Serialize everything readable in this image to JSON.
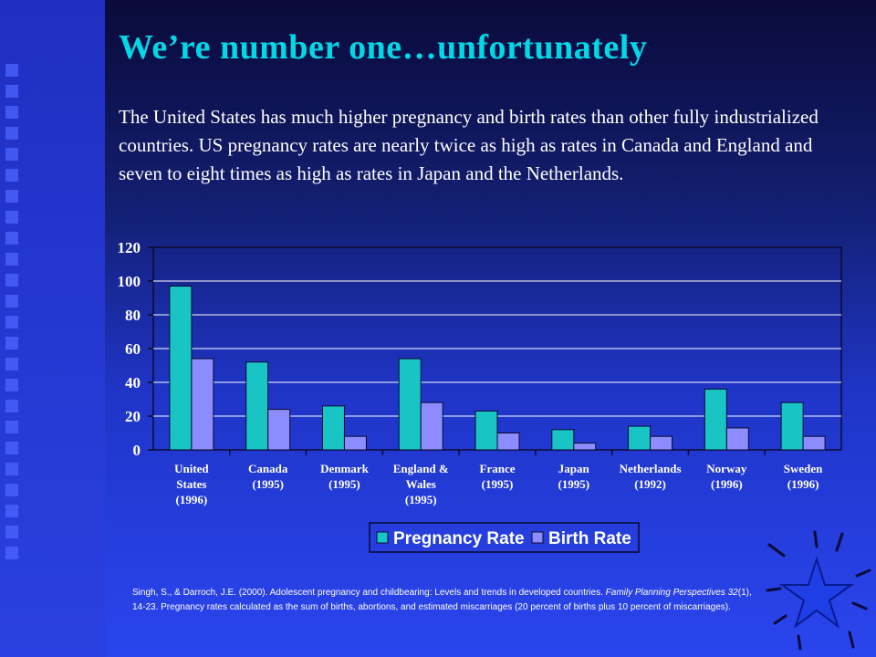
{
  "slide": {
    "title": "We’re number one…unfortunately",
    "intro": "The United States has much higher pregnancy and birth rates than other fully industrialized countries.  US pregnancy rates are nearly twice as high as rates in Canada and England and seven to eight times as high as rates in Japan and the Netherlands.",
    "citation": {
      "part1": "Singh, S., & Darroch, J.E. (2000). Adolescent pregnancy and childbearing: Levels and trends in developed countries. ",
      "journal": "Family Planning Perspectives 32",
      "part2": "(1), 14-23. Pregnancy rates calculated as the sum of births, abortions, and estimated miscarriages (20 percent of births plus 10 percent of miscarriages)."
    }
  },
  "colors": {
    "pregnancy": "#19c4c4",
    "birth": "#8c8cff",
    "title": "#00d8e8",
    "star": "#1f3fe6"
  },
  "chart_data": {
    "type": "bar",
    "title": "",
    "xlabel": "",
    "ylabel": "",
    "ylim": [
      0,
      120
    ],
    "yticks": [
      0,
      20,
      40,
      60,
      80,
      100,
      120
    ],
    "grid": true,
    "legend_position": "bottom",
    "categories": [
      [
        "United",
        "States",
        "(1996)"
      ],
      [
        "Canada",
        "(1995)"
      ],
      [
        "Denmark",
        "(1995)"
      ],
      [
        "England &",
        "Wales",
        "(1995)"
      ],
      [
        "France",
        "(1995)"
      ],
      [
        "Japan",
        "(1995)"
      ],
      [
        "Netherlands",
        "(1992)"
      ],
      [
        "Norway",
        "(1996)"
      ],
      [
        "Sweden",
        "(1996)"
      ]
    ],
    "series": [
      {
        "name": "Pregnancy Rate",
        "values": [
          97,
          52,
          26,
          54,
          23,
          12,
          14,
          36,
          28
        ]
      },
      {
        "name": "Birth Rate",
        "values": [
          54,
          24,
          8,
          28,
          10,
          4,
          8,
          13,
          8
        ]
      }
    ]
  }
}
